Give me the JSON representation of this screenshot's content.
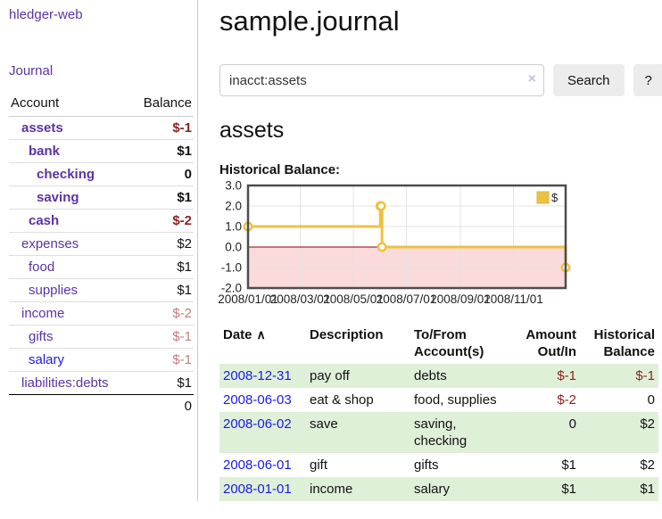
{
  "app": {
    "brand": "hledger-web"
  },
  "colors": {
    "accent_purple": "#5c33a2",
    "link_blue": "#1a1ae6",
    "negative_strong": "#8f1f1f",
    "negative_muted": "#c27e7e",
    "row_green": "#dff0d8",
    "chart_gold": "#edc240",
    "zero_line": "#8b0000",
    "negative_region": "#fadada",
    "grid": "#e3e3e3",
    "chart_border": "#4d4d4d"
  },
  "sidebar": {
    "nav_journal": "Journal",
    "accounts": {
      "header_account": "Account",
      "header_balance": "Balance",
      "rows": [
        {
          "name": "assets",
          "depth": 1,
          "balance": "$-1",
          "bold": true,
          "balance_class": "neg"
        },
        {
          "name": "bank",
          "depth": 2,
          "balance": "$1",
          "bold": true,
          "balance_class": ""
        },
        {
          "name": "checking",
          "depth": 3,
          "balance": "0",
          "bold": true,
          "balance_class": ""
        },
        {
          "name": "saving",
          "depth": 3,
          "balance": "$1",
          "bold": true,
          "balance_class": ""
        },
        {
          "name": "cash",
          "depth": 2,
          "balance": "$-2",
          "bold": true,
          "balance_class": "neg"
        },
        {
          "name": "expenses",
          "depth": 1,
          "balance": "$2",
          "bold": false,
          "balance_class": ""
        },
        {
          "name": "food",
          "depth": 2,
          "balance": "$1",
          "bold": false,
          "balance_class": ""
        },
        {
          "name": "supplies",
          "depth": 2,
          "balance": "$1",
          "bold": false,
          "balance_class": ""
        },
        {
          "name": "income",
          "depth": 1,
          "balance": "$-2",
          "bold": false,
          "balance_class": "negm"
        },
        {
          "name": "gifts",
          "depth": 2,
          "balance": "$-1",
          "bold": false,
          "balance_class": "negm"
        },
        {
          "name": "salary",
          "depth": 2,
          "balance": "$-1",
          "bold": false,
          "balance_class": "negm",
          "link": "blue"
        },
        {
          "name": "liabilities:debts",
          "depth": 1,
          "balance": "$1",
          "bold": false,
          "balance_class": ""
        }
      ],
      "total": "0"
    }
  },
  "main": {
    "title": "sample.journal",
    "search": {
      "value": "inacct:assets",
      "clear_icon": "×",
      "button_label": "Search",
      "help_label": "?"
    },
    "account_heading": "assets",
    "chart_label": "Historical Balance:"
  },
  "chart_data": {
    "type": "line",
    "style": "step",
    "title": "Historical Balance:",
    "legend": "$",
    "legend_position": "top-right",
    "ylim": [
      -2,
      3
    ],
    "yticks": [
      "3.0",
      "2.0",
      "1.0",
      "0.0",
      "-1.0",
      "-2.0"
    ],
    "ytick_values": [
      3,
      2,
      1,
      0,
      -1,
      -2
    ],
    "xticks": [
      "2008/01/01",
      "2008/03/01",
      "2008/05/01",
      "2008/07/01",
      "2008/09/01",
      "2008/11/01"
    ],
    "x_range": [
      "2008-01-01",
      "2008-12-31"
    ],
    "series": [
      {
        "name": "$",
        "points": [
          [
            "2008-01-01",
            1
          ],
          [
            "2008-06-01",
            2
          ],
          [
            "2008-06-02",
            2
          ],
          [
            "2008-06-03",
            0
          ],
          [
            "2008-12-31",
            -1
          ]
        ]
      }
    ]
  },
  "transactions": {
    "headers": [
      "Date",
      "Description",
      "To/From Account(s)",
      "Amount Out/In",
      "Historical Balance"
    ],
    "sort_icon": "∧",
    "rows": [
      {
        "date": "2008-12-31",
        "description": "pay off",
        "accounts": "debts",
        "amount": "$-1",
        "amount_neg": true,
        "balance": "$-1",
        "balance_neg": true
      },
      {
        "date": "2008-06-03",
        "description": "eat & shop",
        "accounts": "food, supplies",
        "amount": "$-2",
        "amount_neg": true,
        "balance": "0",
        "balance_neg": false
      },
      {
        "date": "2008-06-02",
        "description": "save",
        "accounts": "saving, checking",
        "amount": "0",
        "amount_neg": false,
        "balance": "$2",
        "balance_neg": false
      },
      {
        "date": "2008-06-01",
        "description": "gift",
        "accounts": "gifts",
        "amount": "$1",
        "amount_neg": false,
        "balance": "$2",
        "balance_neg": false
      },
      {
        "date": "2008-01-01",
        "description": "income",
        "accounts": "salary",
        "amount": "$1",
        "amount_neg": false,
        "balance": "$1",
        "balance_neg": false
      }
    ]
  }
}
